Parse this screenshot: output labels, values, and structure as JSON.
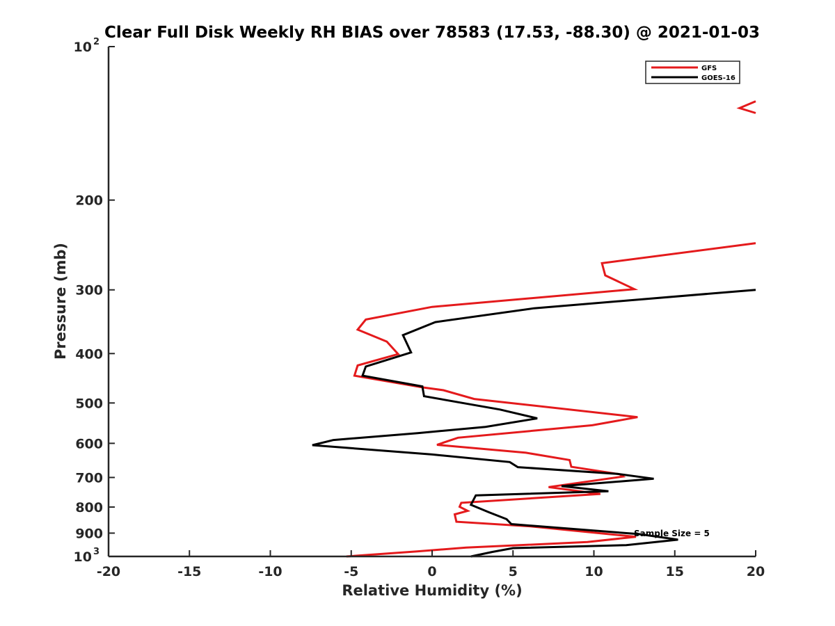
{
  "chart_data": {
    "type": "line",
    "title": "Clear Full Disk Weekly RH BIAS over 78583 (17.53, -88.30) @ 2021-01-03",
    "xlabel": "Relative Humidity (%)",
    "ylabel": "Pressure (mb)",
    "xlim": [
      -20,
      20
    ],
    "ylim": [
      100,
      1000
    ],
    "y_scale": "log",
    "y_reversed": true,
    "x_ticks": [
      "-20",
      "-15",
      "-10",
      "-5",
      "0",
      "5",
      "10",
      "15",
      "20"
    ],
    "y_ticks": [
      {
        "value": 100,
        "base": "10",
        "exp": "2"
      },
      {
        "value": 200,
        "label": "200"
      },
      {
        "value": 300,
        "label": "300"
      },
      {
        "value": 400,
        "label": "400"
      },
      {
        "value": 500,
        "label": "500"
      },
      {
        "value": 600,
        "label": "600"
      },
      {
        "value": 700,
        "label": "700"
      },
      {
        "value": 800,
        "label": "800"
      },
      {
        "value": 900,
        "label": "900"
      },
      {
        "value": 1000,
        "base": "10",
        "exp": "3"
      }
    ],
    "grid": false,
    "legend_position": "top-right",
    "annotation": "Sample Size = 5",
    "series": [
      {
        "name": "GFS",
        "color": "#e41a1c",
        "segments": [
          [
            {
              "x": 20.0,
              "y": 128
            },
            {
              "x": 19.0,
              "y": 132
            },
            {
              "x": 20.0,
              "y": 135
            }
          ],
          [
            {
              "x": 20.0,
              "y": 243
            },
            {
              "x": 10.5,
              "y": 266
            },
            {
              "x": 10.7,
              "y": 281
            },
            {
              "x": 12.5,
              "y": 299
            },
            {
              "x": 0.0,
              "y": 324
            },
            {
              "x": -4.1,
              "y": 343
            },
            {
              "x": -4.6,
              "y": 359
            },
            {
              "x": -2.8,
              "y": 379
            },
            {
              "x": -2.1,
              "y": 401
            },
            {
              "x": -4.6,
              "y": 422
            },
            {
              "x": -4.8,
              "y": 442
            },
            {
              "x": -0.6,
              "y": 466
            },
            {
              "x": 0.7,
              "y": 472
            },
            {
              "x": 2.6,
              "y": 491
            },
            {
              "x": 12.7,
              "y": 533
            },
            {
              "x": 9.9,
              "y": 553
            },
            {
              "x": 1.6,
              "y": 585
            },
            {
              "x": 0.3,
              "y": 604
            },
            {
              "x": 5.8,
              "y": 626
            },
            {
              "x": 8.5,
              "y": 647
            },
            {
              "x": 8.6,
              "y": 667
            },
            {
              "x": 11.6,
              "y": 690
            },
            {
              "x": 11.8,
              "y": 697
            },
            {
              "x": 7.2,
              "y": 731
            },
            {
              "x": 10.4,
              "y": 754
            },
            {
              "x": 1.8,
              "y": 785
            },
            {
              "x": 1.7,
              "y": 799
            },
            {
              "x": 2.2,
              "y": 814
            },
            {
              "x": 1.4,
              "y": 827
            },
            {
              "x": 1.5,
              "y": 855
            },
            {
              "x": 6.1,
              "y": 873
            },
            {
              "x": 12.6,
              "y": 915
            },
            {
              "x": 9.6,
              "y": 937
            },
            {
              "x": 2.1,
              "y": 961
            },
            {
              "x": -1.0,
              "y": 978
            },
            {
              "x": -5.3,
              "y": 1000
            }
          ]
        ]
      },
      {
        "name": "GOES-16",
        "color": "#000000",
        "segments": [
          [
            {
              "x": 20.0,
              "y": 300
            },
            {
              "x": 6.3,
              "y": 326
            },
            {
              "x": 0.2,
              "y": 347
            },
            {
              "x": -1.8,
              "y": 368
            },
            {
              "x": -1.3,
              "y": 398
            },
            {
              "x": -4.1,
              "y": 424
            },
            {
              "x": -4.3,
              "y": 442
            },
            {
              "x": -0.6,
              "y": 464
            },
            {
              "x": -0.5,
              "y": 485
            },
            {
              "x": 4.2,
              "y": 515
            },
            {
              "x": 6.5,
              "y": 536
            },
            {
              "x": 3.3,
              "y": 557
            },
            {
              "x": -0.9,
              "y": 573
            },
            {
              "x": -6.1,
              "y": 591
            },
            {
              "x": -7.4,
              "y": 605
            },
            {
              "x": 0.0,
              "y": 631
            },
            {
              "x": 4.8,
              "y": 653
            },
            {
              "x": 5.3,
              "y": 668
            },
            {
              "x": 11.5,
              "y": 689
            },
            {
              "x": 13.7,
              "y": 704
            },
            {
              "x": 8.0,
              "y": 728
            },
            {
              "x": 10.9,
              "y": 745
            },
            {
              "x": 2.7,
              "y": 759
            },
            {
              "x": 2.4,
              "y": 792
            },
            {
              "x": 3.5,
              "y": 819
            },
            {
              "x": 4.6,
              "y": 845
            },
            {
              "x": 4.9,
              "y": 864
            },
            {
              "x": 12.8,
              "y": 904
            },
            {
              "x": 15.2,
              "y": 927
            },
            {
              "x": 12.0,
              "y": 950
            },
            {
              "x": 5.0,
              "y": 963
            },
            {
              "x": 3.7,
              "y": 980
            },
            {
              "x": 2.4,
              "y": 1000
            }
          ]
        ]
      }
    ]
  }
}
